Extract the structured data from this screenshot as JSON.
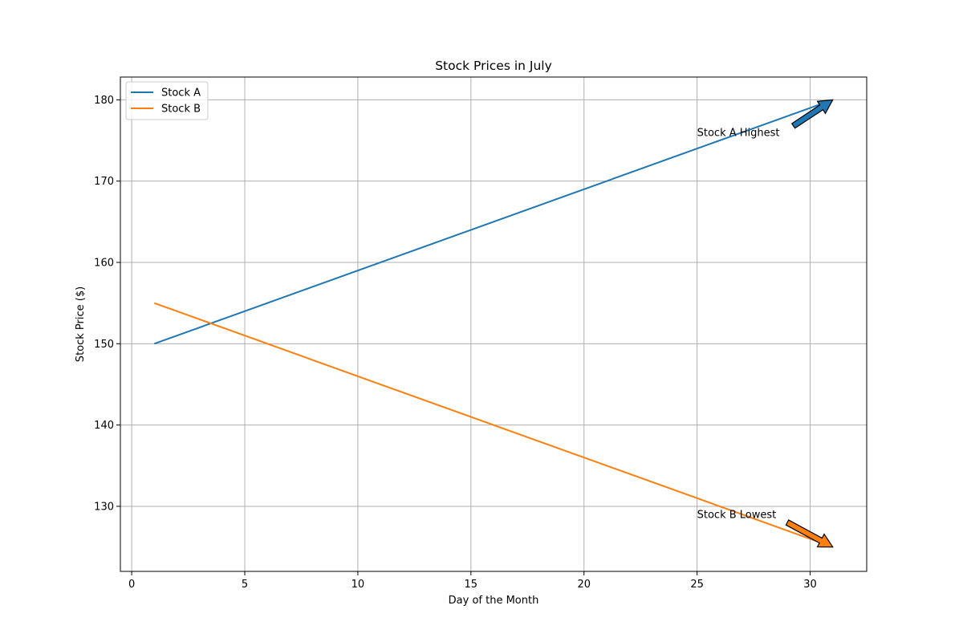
{
  "chart_data": {
    "type": "line",
    "title": "Stock Prices in July",
    "xlabel": "Day of the Month",
    "ylabel": "Stock Price ($)",
    "xlim": [
      -0.5,
      32.5
    ],
    "ylim": [
      122.0,
      182.8
    ],
    "xticks": [
      0,
      5,
      10,
      15,
      20,
      25,
      30
    ],
    "yticks": [
      130,
      140,
      150,
      160,
      170,
      180
    ],
    "grid": true,
    "legend_position": "upper-left",
    "x": [
      1,
      31
    ],
    "series": [
      {
        "name": "Stock A",
        "color": "#1f77b4",
        "values": [
          150,
          180
        ]
      },
      {
        "name": "Stock B",
        "color": "#ff7f0e",
        "values": [
          155,
          125
        ]
      }
    ],
    "annotations": [
      {
        "text": "Stock A Highest",
        "point": [
          31,
          180
        ],
        "text_at": [
          25,
          176
        ],
        "color": "#1f77b4"
      },
      {
        "text": "Stock B Lowest",
        "point": [
          31,
          125
        ],
        "text_at": [
          25,
          129
        ],
        "color": "#ff7f0e"
      }
    ]
  }
}
